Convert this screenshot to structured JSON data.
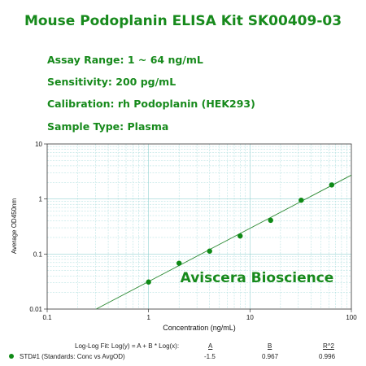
{
  "header": {
    "title": "Mouse Podoplanin ELISA Kit SK00409-03",
    "assay_range": "Assay Range: 1 ~ 64 ng/mL",
    "sensitivity": "Sensitivity: 200 pg/mL",
    "calibration": "Calibration: rh Podoplanin (HEK293)",
    "sample_type": "Sample Type: Plasma"
  },
  "chart_data": {
    "type": "scatter",
    "xlabel": "Concentration (ng/mL)",
    "ylabel": "Average OD450nm",
    "xscale": "log",
    "yscale": "log",
    "xlim": [
      0.1,
      100
    ],
    "ylim": [
      0.01,
      10
    ],
    "grid": true,
    "x_ticks": [
      0.1,
      1,
      10,
      100
    ],
    "x_tick_labels": [
      "0.1",
      "1",
      "10",
      "100"
    ],
    "y_ticks": [
      0.01,
      0.1,
      1,
      10
    ],
    "y_tick_labels": [
      "0.01",
      "0.1",
      "1",
      "10"
    ],
    "watermark": "Aviscera Bioscience",
    "point_color": "#0f8a16",
    "fit_color": "#2d8a34",
    "series": [
      {
        "name": "STD#1 (Standards: Conc vs AvgOD)",
        "x": [
          1,
          2,
          4,
          8,
          16,
          32,
          64
        ],
        "y": [
          0.031,
          0.068,
          0.113,
          0.213,
          0.41,
          0.95,
          1.8
        ]
      }
    ],
    "fit": {
      "model": "Log-Log Fit: Log(y) = A + B * Log(x):",
      "A_label": "A",
      "B_label": "B",
      "R2_label": "R^2",
      "A": -1.5,
      "B": 0.967,
      "R2": 0.996,
      "A_text": "-1.5",
      "B_text": "0.967",
      "R2_text": "0.996"
    }
  }
}
